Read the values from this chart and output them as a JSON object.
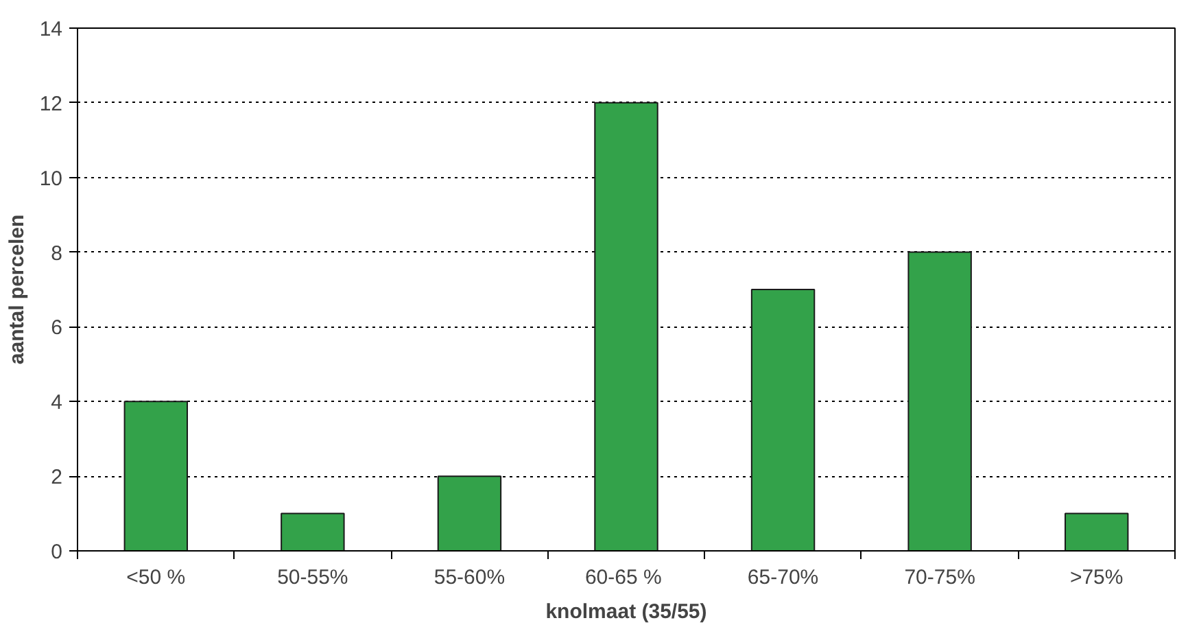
{
  "chart_data": {
    "type": "bar",
    "xlabel": "knolmaat (35/55)",
    "ylabel": "aantal percelen",
    "categories": [
      "<50 %",
      "50-55%",
      "55-60%",
      "60-65  %",
      "65-70%",
      "70-75%",
      ">75%"
    ],
    "values": [
      4,
      1,
      2,
      12,
      7,
      8,
      1
    ],
    "color": "#33a24a",
    "ylim": [
      0,
      14
    ],
    "yticks": [
      0,
      2,
      4,
      6,
      8,
      10,
      12,
      14
    ],
    "grid": "y",
    "line_style": "dotted"
  }
}
